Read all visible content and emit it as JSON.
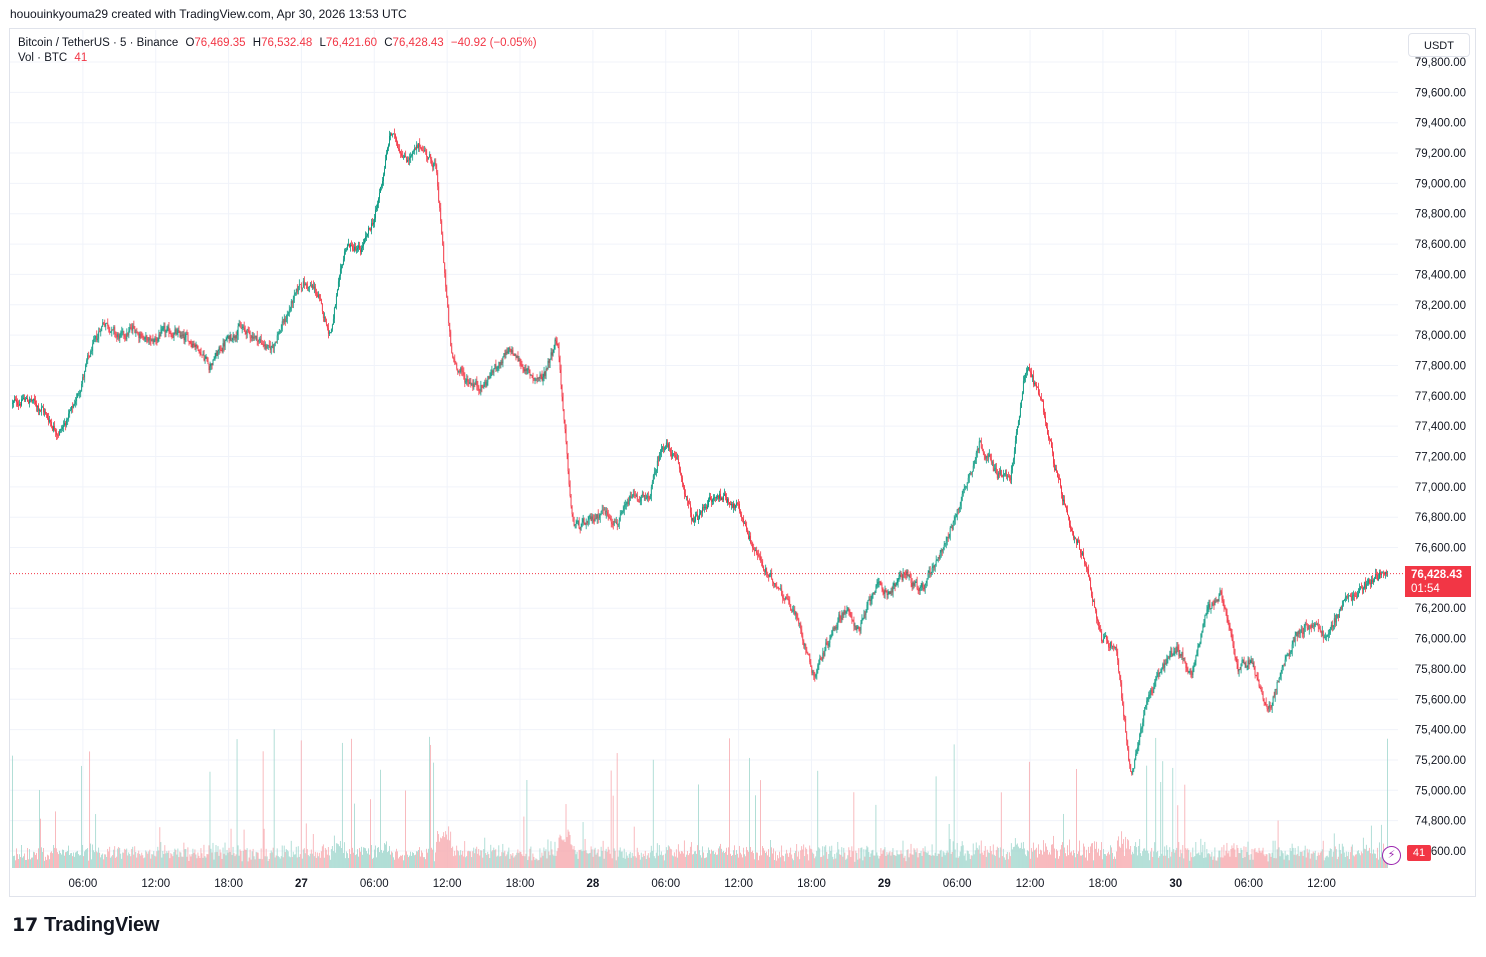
{
  "header": {
    "credit": "hououinkyouma29 created with TradingView.com, Apr 30, 2026 13:53 UTC"
  },
  "legend": {
    "symbol": "Bitcoin / TetherUS · 5 · Binance",
    "open_label": "O",
    "open": "76,469.35",
    "high_label": "H",
    "high": "76,532.48",
    "low_label": "L",
    "low": "76,421.60",
    "close_label": "C",
    "close": "76,428.43",
    "change": "−40.92 (−0.05%)",
    "vol_label": "Vol · BTC",
    "vol_value": "41"
  },
  "currency_button": "USDT",
  "last_price": {
    "price": "76,428.43",
    "countdown": "01:54",
    "value": 76428.43
  },
  "volume_badge": "41",
  "footer": {
    "brand": "TradingView"
  },
  "colors": {
    "up": "#089981",
    "down": "#f23645",
    "vol_up": "#9fd6cd",
    "vol_down": "#f7a9ae",
    "grid": "#f0f3fa"
  },
  "chart_data": {
    "type": "candlestick",
    "symbol": "BTCUSDT",
    "interval": "5",
    "y_axis": {
      "labels": [
        "79,800.00",
        "79,600.00",
        "79,400.00",
        "79,200.00",
        "79,000.00",
        "78,800.00",
        "78,600.00",
        "78,400.00",
        "78,200.00",
        "78,000.00",
        "77,800.00",
        "77,600.00",
        "77,400.00",
        "77,200.00",
        "77,000.00",
        "76,800.00",
        "76,600.00",
        "76,200.00",
        "76,000.00",
        "75,800.00",
        "75,600.00",
        "75,400.00",
        "75,200.00",
        "75,000.00",
        "74,800.00",
        "74,600.00"
      ],
      "range": [
        74600,
        79800
      ]
    },
    "x_axis": {
      "labels": [
        "06:00",
        "12:00",
        "18:00",
        "27",
        "06:00",
        "12:00",
        "18:00",
        "28",
        "06:00",
        "12:00",
        "18:00",
        "29",
        "06:00",
        "12:00",
        "18:00",
        "30",
        "06:00",
        "12:00"
      ],
      "bold": [
        false,
        false,
        false,
        true,
        false,
        false,
        false,
        true,
        false,
        false,
        false,
        true,
        false,
        false,
        false,
        true,
        false,
        false
      ],
      "hours": [
        6,
        12,
        18,
        24,
        30,
        36,
        42,
        48,
        54,
        60,
        66,
        72,
        78,
        84,
        90,
        96,
        102,
        108
      ]
    },
    "price_path": [
      [
        0,
        77550
      ],
      [
        1,
        77580
      ],
      [
        2,
        77500
      ],
      [
        3,
        77350
      ],
      [
        4,
        77520
      ],
      [
        5,
        77850
      ],
      [
        6,
        78100
      ],
      [
        7,
        77980
      ],
      [
        8,
        78050
      ],
      [
        9,
        77950
      ],
      [
        10,
        78020
      ],
      [
        11,
        78000
      ],
      [
        12,
        77950
      ],
      [
        13,
        77800
      ],
      [
        14,
        77950
      ],
      [
        15,
        78050
      ],
      [
        16,
        77990
      ],
      [
        17,
        77900
      ],
      [
        18,
        78100
      ],
      [
        19,
        78350
      ],
      [
        20,
        78300
      ],
      [
        21,
        78000
      ],
      [
        22,
        78600
      ],
      [
        23,
        78550
      ],
      [
        24,
        78800
      ],
      [
        25,
        79350
      ],
      [
        26,
        79150
      ],
      [
        27,
        79250
      ],
      [
        28,
        79100
      ],
      [
        29,
        77850
      ],
      [
        30,
        77700
      ],
      [
        31,
        77650
      ],
      [
        32,
        77800
      ],
      [
        33,
        77900
      ],
      [
        34,
        77750
      ],
      [
        35,
        77700
      ],
      [
        36,
        78000
      ],
      [
        37,
        76750
      ],
      [
        38,
        76750
      ],
      [
        39,
        76850
      ],
      [
        40,
        76750
      ],
      [
        41,
        76950
      ],
      [
        42,
        76900
      ],
      [
        43,
        77300
      ],
      [
        44,
        77150
      ],
      [
        45,
        76750
      ],
      [
        46,
        76900
      ],
      [
        47,
        76950
      ],
      [
        48,
        76850
      ],
      [
        49,
        76600
      ],
      [
        50,
        76400
      ],
      [
        51,
        76300
      ],
      [
        52,
        76100
      ],
      [
        53,
        75750
      ],
      [
        54,
        76000
      ],
      [
        55,
        76200
      ],
      [
        56,
        76050
      ],
      [
        57,
        76350
      ],
      [
        58,
        76300
      ],
      [
        59,
        76450
      ],
      [
        60,
        76300
      ],
      [
        61,
        76500
      ],
      [
        62,
        76700
      ],
      [
        63,
        77000
      ],
      [
        64,
        77300
      ],
      [
        65,
        77100
      ],
      [
        66,
        77050
      ],
      [
        67,
        77800
      ],
      [
        68,
        77600
      ],
      [
        69,
        77100
      ],
      [
        70,
        76700
      ],
      [
        71,
        76500
      ],
      [
        72,
        76000
      ],
      [
        73,
        75950
      ],
      [
        74,
        75050
      ],
      [
        75,
        75600
      ],
      [
        76,
        75800
      ],
      [
        77,
        75950
      ],
      [
        78,
        75750
      ],
      [
        79,
        76200
      ],
      [
        80,
        76300
      ],
      [
        81,
        75800
      ],
      [
        82,
        75850
      ],
      [
        83,
        75500
      ],
      [
        84,
        75800
      ],
      [
        85,
        76050
      ],
      [
        86,
        76100
      ],
      [
        87,
        76000
      ],
      [
        88,
        76250
      ],
      [
        89,
        76300
      ],
      [
        90,
        76400
      ],
      [
        91,
        76450
      ]
    ],
    "hours_span": 114.3,
    "high": 79450,
    "low": 74950,
    "last_close": 76428.43,
    "volume_axis": {
      "unit": "BTC",
      "last": 41
    },
    "grid": true
  }
}
